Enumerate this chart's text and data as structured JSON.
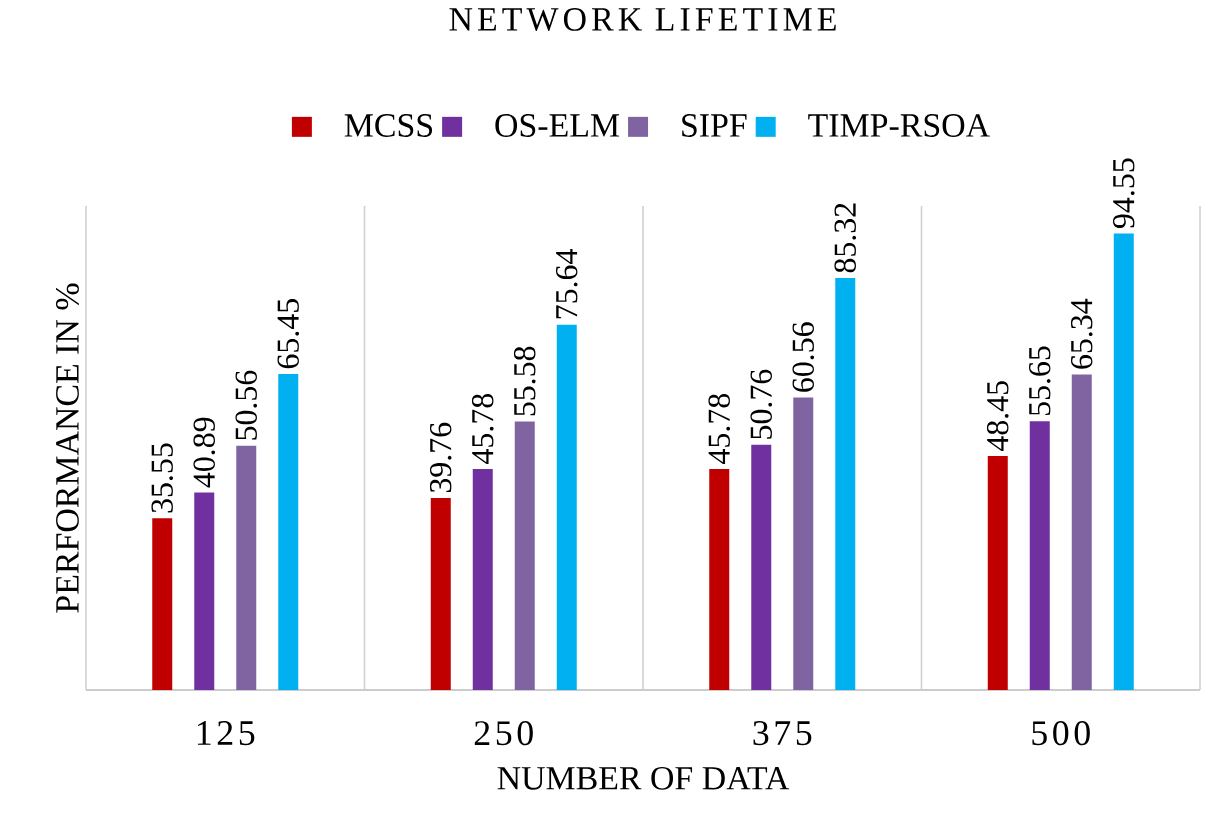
{
  "chart_data": {
    "type": "bar",
    "title": "NETWORK LIFETIME",
    "xlabel": "NUMBER OF DATA",
    "ylabel": "PERFORMANCE IN %",
    "categories": [
      "125",
      "250",
      "375",
      "500"
    ],
    "series": [
      {
        "name": "MCSS",
        "color": "#c00000",
        "values": [
          35.55,
          39.76,
          45.78,
          48.45
        ]
      },
      {
        "name": "OS-ELM",
        "color": "#7030a0",
        "values": [
          40.89,
          45.78,
          50.76,
          55.65
        ]
      },
      {
        "name": "SIPF",
        "color": "#8064a2",
        "values": [
          50.56,
          55.58,
          60.56,
          65.34
        ]
      },
      {
        "name": "TIMP-RSOA",
        "color": "#00b0f0",
        "values": [
          65.45,
          75.64,
          85.32,
          94.55
        ]
      }
    ],
    "data_labels": true,
    "legend": "top",
    "grid": "x"
  }
}
